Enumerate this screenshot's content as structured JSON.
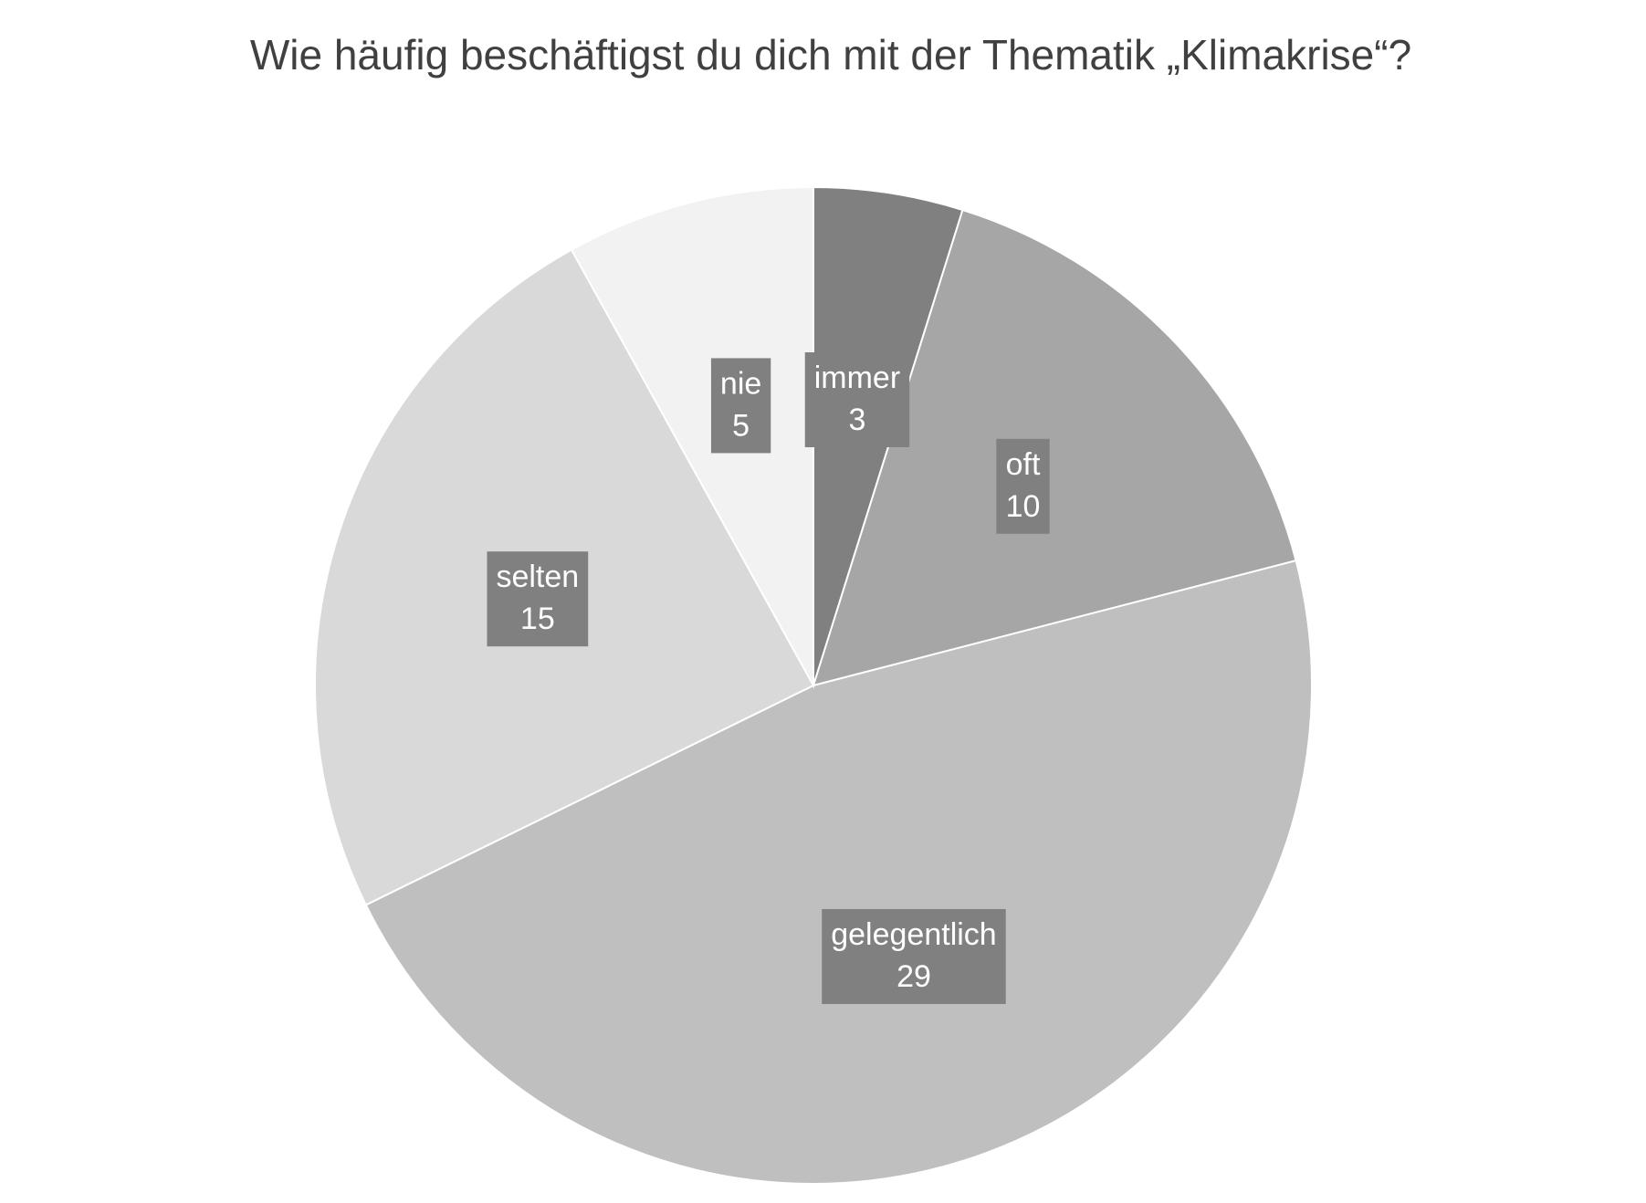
{
  "chart_data": {
    "type": "pie",
    "title": "Wie häufig beschäftigst du dich mit der Thematik „Klimakrise“?",
    "categories": [
      "immer",
      "oft",
      "gelegentlich",
      "selten",
      "nie"
    ],
    "values": [
      3,
      10,
      29,
      15,
      5
    ],
    "colors": [
      "#808080",
      "#a6a6a6",
      "#bfbfbf",
      "#d9d9d9",
      "#f2f2f2"
    ],
    "label_box_color": "#808080"
  }
}
